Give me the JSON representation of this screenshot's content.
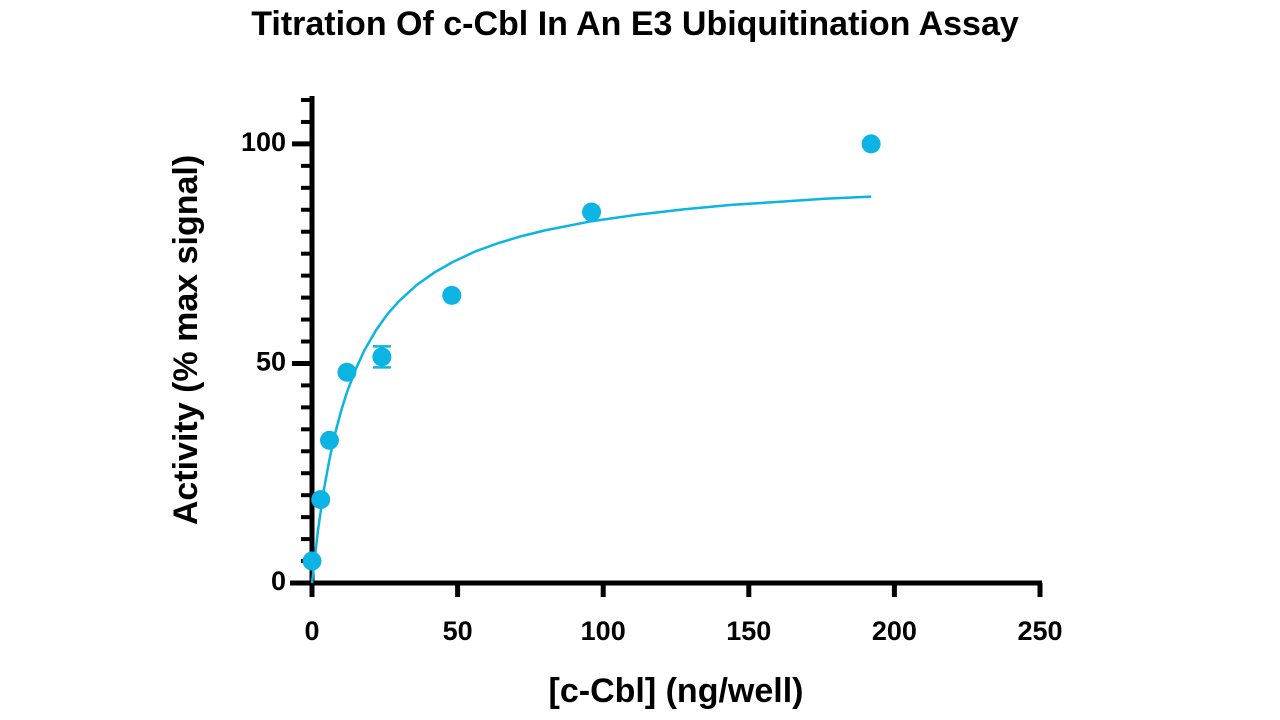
{
  "chart_data": {
    "type": "scatter",
    "title": "Titration Of c-Cbl In An E3 Ubiquitination Assay",
    "x_label": "[c-Cbl] (ng/well)",
    "y_label": "Activity (% max signal)",
    "xlim": [
      0,
      250
    ],
    "xticks": [
      0,
      50,
      100,
      150,
      200,
      250
    ],
    "ylim": [
      0,
      110
    ],
    "yticks": [
      0,
      50,
      100
    ],
    "yminorticks": [
      5,
      10,
      15,
      20,
      25,
      30,
      35,
      40,
      45,
      55,
      60,
      65,
      70,
      75,
      80,
      85,
      90,
      95,
      105,
      110
    ],
    "color": "#0cb4e4",
    "points": {
      "x": [
        0,
        3,
        6,
        12,
        24,
        48,
        96,
        192
      ],
      "values": [
        5,
        19,
        32.5,
        48,
        51.5,
        65.5,
        84.5,
        100
      ],
      "errors": [
        null,
        null,
        null,
        null,
        2.4,
        null,
        null,
        null
      ]
    },
    "fit": {
      "x": [
        0,
        2,
        4,
        6,
        8,
        10,
        12,
        15,
        18,
        22,
        26,
        30,
        36,
        42,
        48,
        56,
        64,
        72,
        80,
        96,
        112,
        128,
        144,
        160,
        176,
        192
      ],
      "values": [
        0,
        11.7,
        20.9,
        28.2,
        34.2,
        39.2,
        43.4,
        48.7,
        53.0,
        57.6,
        61.3,
        64.3,
        67.9,
        70.7,
        73.0,
        75.5,
        77.4,
        79.0,
        80.3,
        82.4,
        83.9,
        85.1,
        86.1,
        86.8,
        87.5,
        88.0
      ]
    }
  }
}
